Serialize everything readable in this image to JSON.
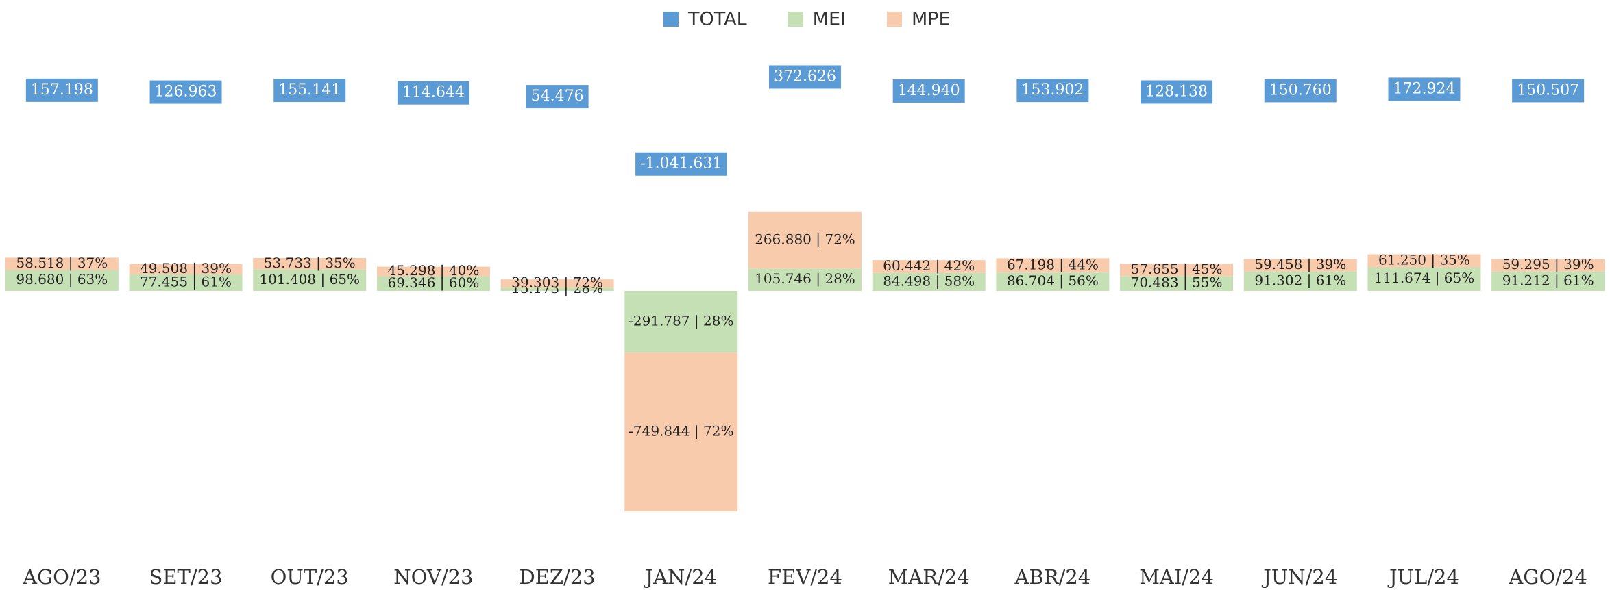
{
  "chart_data": {
    "type": "stacked_bar",
    "categories": [
      "AGO/23",
      "SET/23",
      "OUT/23",
      "NOV/23",
      "DEZ/23",
      "JAN/24",
      "FEV/24",
      "MAR/24",
      "ABR/24",
      "MAI/24",
      "JUN/24",
      "JUL/24",
      "AGO/24"
    ],
    "series": [
      {
        "name": "TOTAL",
        "color": "#5b9bd5",
        "role": "label",
        "values": [
          157198,
          126963,
          155141,
          114644,
          54476,
          -1041631,
          372626,
          144940,
          153902,
          128138,
          150760,
          172924,
          150507
        ],
        "value_labels": [
          "157.198",
          "126.963",
          "155.141",
          "114.644",
          "54.476",
          "-1.041.631",
          "372.626",
          "144.940",
          "153.902",
          "128.138",
          "150.760",
          "172.924",
          "150.507"
        ]
      },
      {
        "name": "MEI",
        "color": "#c5e0b4",
        "values": [
          98680,
          77455,
          101408,
          69346,
          15173,
          -291787,
          105746,
          84498,
          86704,
          70483,
          91302,
          111674,
          91212
        ],
        "value_labels": [
          "98.680 | 63%",
          "77.455 | 61%",
          "101.408 | 65%",
          "69.346 | 60%",
          "15.173 | 28%",
          "-291.787 | 28%",
          "105.746 | 28%",
          "84.498 | 58%",
          "86.704 | 56%",
          "70.483 | 55%",
          "91.302 | 61%",
          "111.674 | 65%",
          "91.212 | 61%"
        ]
      },
      {
        "name": "MPE",
        "color": "#f8cbad",
        "values": [
          58518,
          49508,
          53733,
          45298,
          39303,
          -749844,
          266880,
          60442,
          67198,
          57655,
          59458,
          61250,
          59295
        ],
        "value_labels": [
          "58.518 | 37%",
          "49.508 | 39%",
          "53.733 | 35%",
          "45.298 | 40%",
          "39.303 | 72%",
          "-749.844 | 72%",
          "266.880 | 72%",
          "60.442 | 42%",
          "67.198 | 44%",
          "57.655 | 45%",
          "59.458 | 39%",
          "61.250 | 35%",
          "59.295 | 39%"
        ]
      }
    ],
    "legend": "top"
  }
}
